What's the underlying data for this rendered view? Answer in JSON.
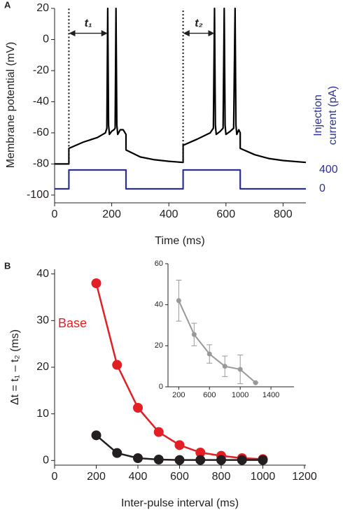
{
  "chart_data": [
    {
      "type": "line",
      "panel_label": "A",
      "xlabel": "Time (ms)",
      "ylabel": "Membrane potential (mV)",
      "y2label": [
        "Injection",
        "current (pA)"
      ],
      "y2color": "#2e3192",
      "xlim": [
        0,
        880
      ],
      "xticks": [
        0,
        200,
        400,
        600,
        800
      ],
      "ylim": [
        -105,
        20
      ],
      "yticks": [
        20,
        0,
        -20,
        -40,
        -60,
        -80,
        -100
      ],
      "y2lim": [
        -296,
        3822
      ],
      "y2ticks": [
        0,
        400
      ],
      "series": [
        {
          "color": "#000000",
          "x": [
            0,
            50,
            50,
            100,
            150,
            178,
            183,
            186,
            189,
            192,
            200,
            208,
            212,
            215,
            218,
            221,
            230,
            240,
            250,
            250,
            300,
            350,
            400,
            450,
            450,
            500,
            545,
            556,
            560,
            563,
            566,
            580,
            590,
            594,
            597,
            600,
            615,
            627,
            632,
            635,
            638,
            645,
            650,
            650,
            700,
            750,
            800,
            880
          ],
          "values": [
            -80,
            -80,
            -70,
            -66,
            -63,
            -60,
            -57,
            20,
            -55,
            -61,
            -59,
            -58,
            -57,
            20,
            -55,
            -61,
            -58,
            -58,
            -61,
            -71,
            -75.5,
            -77.3,
            -78.3,
            -79,
            -68,
            -64,
            -60,
            -57,
            20,
            -55,
            -61,
            -59,
            -57,
            20,
            -55,
            -61,
            -59,
            -57,
            20,
            -55,
            -61,
            -58,
            -60,
            -70,
            -74,
            -76.5,
            -77.8,
            -79
          ]
        },
        {
          "color": "#2e3192",
          "axis": "y2",
          "x": [
            0,
            50,
            50,
            250,
            250,
            450,
            450,
            650,
            650,
            880
          ],
          "values": [
            0,
            0,
            400,
            400,
            0,
            0,
            400,
            400,
            0,
            0
          ]
        }
      ],
      "annotations": [
        {
          "label": "t₁",
          "x1": 50,
          "x2": 186,
          "arrow_y": 4,
          "y1": -80,
          "y2": 20
        },
        {
          "label": "t₂",
          "x1": 450,
          "x2": 560,
          "arrow_y": 4,
          "y1": -79,
          "y2": 20
        }
      ]
    },
    {
      "type": "line",
      "panel_label": "B",
      "xlabel": "Inter-pulse interval (ms)",
      "ylabel": "Δt = t₁ – t₂ (ms)",
      "xlim": [
        0,
        1200
      ],
      "xticks": [
        0,
        200,
        400,
        600,
        800,
        1000,
        1200
      ],
      "ylim": [
        -1,
        41
      ],
      "yticks": [
        0,
        10,
        20,
        30,
        40
      ],
      "x": [
        200,
        300,
        400,
        500,
        600,
        700,
        800,
        900,
        1000
      ],
      "series": [
        {
          "name": "Base",
          "color": "#e31e24",
          "values": [
            38,
            20.5,
            11.3,
            6.1,
            3.3,
            1.7,
            1.0,
            0.5,
            0.3
          ]
        },
        {
          "color": "#231f20",
          "values": [
            5.4,
            1.6,
            0.5,
            0.2,
            0.1,
            0.1,
            0.1,
            0.1,
            0.1
          ]
        }
      ]
    },
    {
      "type": "line",
      "xlim": [
        60,
        1700
      ],
      "xticks": [
        200,
        600,
        1000,
        1400
      ],
      "ylim": [
        0,
        60
      ],
      "yticks": [
        0,
        20,
        40,
        60
      ],
      "x": [
        200,
        400,
        600,
        800,
        1000,
        1200
      ],
      "series": [
        {
          "color": "#999999",
          "values": [
            42,
            25.5,
            16,
            10,
            8.5,
            2
          ],
          "errors": [
            10,
            5.5,
            4.5,
            5,
            7,
            0
          ]
        }
      ]
    }
  ]
}
